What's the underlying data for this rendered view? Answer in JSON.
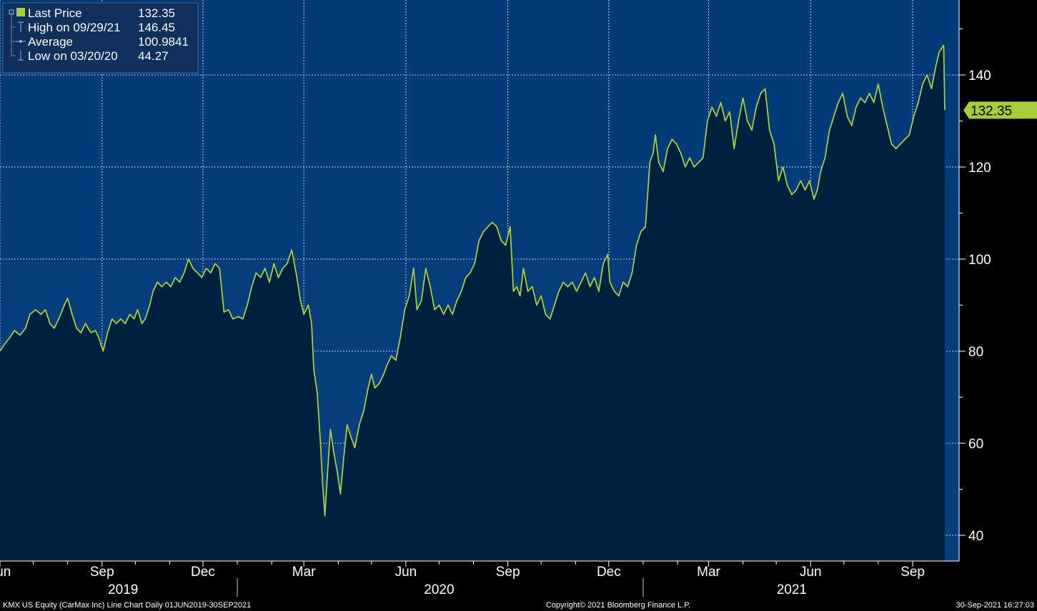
{
  "chart_data": {
    "type": "area",
    "ticker_line": "KMX US Equity (CarMax Inc) Line Chart  Daily 01JUN2019-30SEP2021",
    "copyright": "Copyright© 2021 Bloomberg Finance L.P.",
    "timestamp": "30-Sep-2021 16:27:03",
    "ylim": [
      35,
      160
    ],
    "y_ticks": [
      "40",
      "60",
      "80",
      "100",
      "120",
      "140"
    ],
    "y_tick_values": [
      40,
      60,
      80,
      100,
      120,
      140
    ],
    "x_ticks": [
      {
        "label": "Jun",
        "date": "2019-06-01"
      },
      {
        "label": "Sep",
        "date": "2019-09-01"
      },
      {
        "label": "Dec",
        "date": "2019-12-01"
      },
      {
        "label": "Mar",
        "date": "2020-03-01"
      },
      {
        "label": "Jun",
        "date": "2020-06-01"
      },
      {
        "label": "Sep",
        "date": "2020-09-01"
      },
      {
        "label": "Dec",
        "date": "2020-12-01"
      },
      {
        "label": "Mar",
        "date": "2021-03-01"
      },
      {
        "label": "Jun",
        "date": "2021-06-01"
      },
      {
        "label": "Sep",
        "date": "2021-09-01"
      }
    ],
    "minor_month_ticks": [
      "2019-07-01",
      "2019-08-01",
      "2019-10-01",
      "2019-11-01",
      "2020-01-01",
      "2020-02-01",
      "2020-04-01",
      "2020-05-01",
      "2020-07-01",
      "2020-08-01",
      "2020-10-01",
      "2020-11-01",
      "2021-01-01",
      "2021-02-01",
      "2021-04-01",
      "2021-05-01",
      "2021-07-01",
      "2021-08-01"
    ],
    "years": [
      {
        "label": "2019",
        "center": "2019-09-20"
      },
      {
        "label": "2020",
        "center": "2020-07-01"
      },
      {
        "label": "2021",
        "center": "2021-05-15"
      }
    ],
    "year_boundaries": [
      "2020-01-01",
      "2021-01-01"
    ],
    "legend": [
      {
        "label": "Last Price",
        "value": "132.35",
        "marker": "filled-square"
      },
      {
        "label": "High on 09/29/21",
        "value": "146.45",
        "marker": "high-bracket"
      },
      {
        "label": "Average",
        "value": "100.9841",
        "marker": "average-dash"
      },
      {
        "label": "Low on 03/20/20",
        "value": "44.27",
        "marker": "low-bracket"
      }
    ],
    "last_price_label": "132.35",
    "last_price": 132.35,
    "colors": {
      "line": "#a6ce39",
      "area": "#00203f",
      "bg_top": "#003a78",
      "bg_bottom": "#0a3f7f",
      "grid": "#ffffff"
    },
    "series": [
      {
        "values": [
          [
            "2019-06-01",
            80
          ],
          [
            "2019-06-05",
            81.5
          ],
          [
            "2019-06-10",
            83
          ],
          [
            "2019-06-14",
            84.5
          ],
          [
            "2019-06-19",
            83.5
          ],
          [
            "2019-06-24",
            85
          ],
          [
            "2019-06-28",
            88
          ],
          [
            "2019-07-03",
            89
          ],
          [
            "2019-07-08",
            88
          ],
          [
            "2019-07-12",
            89
          ],
          [
            "2019-07-16",
            86
          ],
          [
            "2019-07-20",
            85
          ],
          [
            "2019-07-24",
            87
          ],
          [
            "2019-07-29",
            90
          ],
          [
            "2019-08-01",
            91.5
          ],
          [
            "2019-08-05",
            88
          ],
          [
            "2019-08-09",
            85
          ],
          [
            "2019-08-13",
            84
          ],
          [
            "2019-08-17",
            86
          ],
          [
            "2019-08-22",
            84
          ],
          [
            "2019-08-26",
            84.5
          ],
          [
            "2019-08-29",
            83
          ],
          [
            "2019-09-02",
            80
          ],
          [
            "2019-09-06",
            84
          ],
          [
            "2019-09-10",
            87
          ],
          [
            "2019-09-14",
            86
          ],
          [
            "2019-09-18",
            87
          ],
          [
            "2019-09-22",
            86
          ],
          [
            "2019-09-26",
            88
          ],
          [
            "2019-09-30",
            87
          ],
          [
            "2019-10-03",
            89
          ],
          [
            "2019-10-07",
            86
          ],
          [
            "2019-10-10",
            87
          ],
          [
            "2019-10-14",
            90
          ],
          [
            "2019-10-17",
            93
          ],
          [
            "2019-10-21",
            95
          ],
          [
            "2019-10-25",
            94
          ],
          [
            "2019-10-29",
            95
          ],
          [
            "2019-11-02",
            94
          ],
          [
            "2019-11-06",
            96
          ],
          [
            "2019-11-10",
            95
          ],
          [
            "2019-11-14",
            97
          ],
          [
            "2019-11-18",
            100
          ],
          [
            "2019-11-22",
            98
          ],
          [
            "2019-11-26",
            97
          ],
          [
            "2019-11-30",
            96
          ],
          [
            "2019-12-04",
            98
          ],
          [
            "2019-12-08",
            97
          ],
          [
            "2019-12-12",
            99
          ],
          [
            "2019-12-16",
            98
          ],
          [
            "2019-12-20",
            88.5
          ],
          [
            "2019-12-24",
            89
          ],
          [
            "2019-12-28",
            87
          ],
          [
            "2020-01-02",
            87.5
          ],
          [
            "2020-01-06",
            87
          ],
          [
            "2020-01-10",
            90
          ],
          [
            "2020-01-14",
            94
          ],
          [
            "2020-01-18",
            97
          ],
          [
            "2020-01-22",
            96
          ],
          [
            "2020-01-26",
            98
          ],
          [
            "2020-01-30",
            95
          ],
          [
            "2020-02-03",
            99
          ],
          [
            "2020-02-07",
            96
          ],
          [
            "2020-02-11",
            98
          ],
          [
            "2020-02-15",
            99
          ],
          [
            "2020-02-19",
            102
          ],
          [
            "2020-02-23",
            97
          ],
          [
            "2020-02-27",
            91
          ],
          [
            "2020-03-01",
            88
          ],
          [
            "2020-03-05",
            90
          ],
          [
            "2020-03-08",
            86
          ],
          [
            "2020-03-10",
            76
          ],
          [
            "2020-03-13",
            71
          ],
          [
            "2020-03-16",
            60
          ],
          [
            "2020-03-18",
            51
          ],
          [
            "2020-03-20",
            44.27
          ],
          [
            "2020-03-23",
            56
          ],
          [
            "2020-03-25",
            63
          ],
          [
            "2020-03-28",
            58
          ],
          [
            "2020-03-31",
            54
          ],
          [
            "2020-04-03",
            49
          ],
          [
            "2020-04-06",
            57
          ],
          [
            "2020-04-09",
            64
          ],
          [
            "2020-04-13",
            61
          ],
          [
            "2020-04-16",
            59
          ],
          [
            "2020-04-20",
            64
          ],
          [
            "2020-04-24",
            67
          ],
          [
            "2020-04-28",
            72
          ],
          [
            "2020-05-01",
            75
          ],
          [
            "2020-05-04",
            72
          ],
          [
            "2020-05-08",
            73
          ],
          [
            "2020-05-12",
            75
          ],
          [
            "2020-05-15",
            77
          ],
          [
            "2020-05-19",
            79
          ],
          [
            "2020-05-23",
            78
          ],
          [
            "2020-05-27",
            83
          ],
          [
            "2020-05-31",
            89
          ],
          [
            "2020-06-04",
            92
          ],
          [
            "2020-06-08",
            98
          ],
          [
            "2020-06-11",
            89
          ],
          [
            "2020-06-15",
            91
          ],
          [
            "2020-06-19",
            98
          ],
          [
            "2020-06-23",
            94
          ],
          [
            "2020-06-27",
            89
          ],
          [
            "2020-07-01",
            90
          ],
          [
            "2020-07-05",
            88
          ],
          [
            "2020-07-09",
            90
          ],
          [
            "2020-07-13",
            88
          ],
          [
            "2020-07-17",
            91
          ],
          [
            "2020-07-21",
            93
          ],
          [
            "2020-07-25",
            96
          ],
          [
            "2020-07-29",
            97
          ],
          [
            "2020-08-02",
            99
          ],
          [
            "2020-08-06",
            104
          ],
          [
            "2020-08-10",
            106
          ],
          [
            "2020-08-14",
            107
          ],
          [
            "2020-08-18",
            108
          ],
          [
            "2020-08-22",
            107
          ],
          [
            "2020-08-26",
            104
          ],
          [
            "2020-08-30",
            103
          ],
          [
            "2020-09-03",
            107
          ],
          [
            "2020-09-06",
            93
          ],
          [
            "2020-09-09",
            94
          ],
          [
            "2020-09-12",
            92
          ],
          [
            "2020-09-15",
            98
          ],
          [
            "2020-09-19",
            93
          ],
          [
            "2020-09-23",
            94
          ],
          [
            "2020-09-27",
            90
          ],
          [
            "2020-10-01",
            92
          ],
          [
            "2020-10-05",
            88
          ],
          [
            "2020-10-09",
            87
          ],
          [
            "2020-10-13",
            90
          ],
          [
            "2020-10-17",
            93
          ],
          [
            "2020-10-21",
            95
          ],
          [
            "2020-10-25",
            94
          ],
          [
            "2020-10-29",
            95
          ],
          [
            "2020-11-02",
            93
          ],
          [
            "2020-11-06",
            95
          ],
          [
            "2020-11-10",
            97
          ],
          [
            "2020-11-14",
            94
          ],
          [
            "2020-11-18",
            96
          ],
          [
            "2020-11-22",
            93
          ],
          [
            "2020-11-26",
            99
          ],
          [
            "2020-11-30",
            101
          ],
          [
            "2020-12-02",
            95
          ],
          [
            "2020-12-06",
            93
          ],
          [
            "2020-12-10",
            92
          ],
          [
            "2020-12-14",
            95
          ],
          [
            "2020-12-18",
            94
          ],
          [
            "2020-12-22",
            97
          ],
          [
            "2020-12-26",
            103
          ],
          [
            "2020-12-30",
            106
          ],
          [
            "2021-01-03",
            107
          ],
          [
            "2021-01-07",
            121
          ],
          [
            "2021-01-10",
            123
          ],
          [
            "2021-01-12",
            127
          ],
          [
            "2021-01-15",
            121
          ],
          [
            "2021-01-19",
            119
          ],
          [
            "2021-01-23",
            124
          ],
          [
            "2021-01-27",
            126
          ],
          [
            "2021-01-31",
            125
          ],
          [
            "2021-02-04",
            123
          ],
          [
            "2021-02-08",
            120
          ],
          [
            "2021-02-12",
            122
          ],
          [
            "2021-02-16",
            120
          ],
          [
            "2021-02-20",
            121
          ],
          [
            "2021-02-24",
            122
          ],
          [
            "2021-02-28",
            130
          ],
          [
            "2021-03-04",
            133
          ],
          [
            "2021-03-08",
            131
          ],
          [
            "2021-03-12",
            134
          ],
          [
            "2021-03-16",
            130
          ],
          [
            "2021-03-20",
            132
          ],
          [
            "2021-03-24",
            124
          ],
          [
            "2021-03-28",
            130
          ],
          [
            "2021-04-01",
            135
          ],
          [
            "2021-04-05",
            130
          ],
          [
            "2021-04-09",
            128
          ],
          [
            "2021-04-13",
            133
          ],
          [
            "2021-04-17",
            136
          ],
          [
            "2021-04-21",
            137
          ],
          [
            "2021-04-25",
            128
          ],
          [
            "2021-04-29",
            125
          ],
          [
            "2021-05-03",
            117
          ],
          [
            "2021-05-07",
            120
          ],
          [
            "2021-05-11",
            116
          ],
          [
            "2021-05-15",
            114
          ],
          [
            "2021-05-19",
            115
          ],
          [
            "2021-05-23",
            117
          ],
          [
            "2021-05-27",
            115
          ],
          [
            "2021-05-31",
            117
          ],
          [
            "2021-06-04",
            113
          ],
          [
            "2021-06-07",
            115
          ],
          [
            "2021-06-10",
            119
          ],
          [
            "2021-06-14",
            122
          ],
          [
            "2021-06-18",
            128
          ],
          [
            "2021-06-22",
            131
          ],
          [
            "2021-06-26",
            134
          ],
          [
            "2021-06-30",
            136
          ],
          [
            "2021-07-04",
            131
          ],
          [
            "2021-07-08",
            129
          ],
          [
            "2021-07-12",
            133
          ],
          [
            "2021-07-16",
            135
          ],
          [
            "2021-07-20",
            134
          ],
          [
            "2021-07-24",
            136
          ],
          [
            "2021-07-28",
            134
          ],
          [
            "2021-08-01",
            138
          ],
          [
            "2021-08-05",
            133
          ],
          [
            "2021-08-09",
            129
          ],
          [
            "2021-08-13",
            125
          ],
          [
            "2021-08-17",
            124
          ],
          [
            "2021-08-21",
            125
          ],
          [
            "2021-08-25",
            126
          ],
          [
            "2021-08-29",
            127
          ],
          [
            "2021-09-02",
            131
          ],
          [
            "2021-09-06",
            134
          ],
          [
            "2021-09-10",
            138
          ],
          [
            "2021-09-14",
            140
          ],
          [
            "2021-09-18",
            137
          ],
          [
            "2021-09-22",
            142
          ],
          [
            "2021-09-25",
            145
          ],
          [
            "2021-09-29",
            146.45
          ],
          [
            "2021-09-30",
            132.35
          ]
        ]
      }
    ]
  }
}
